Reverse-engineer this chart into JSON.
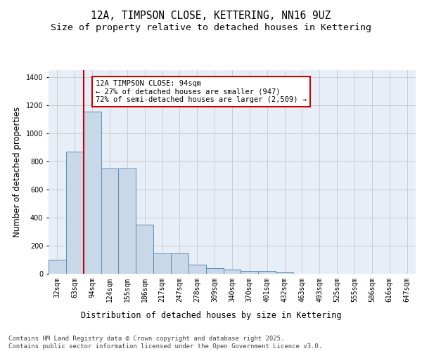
{
  "title_line1": "12A, TIMPSON CLOSE, KETTERING, NN16 9UZ",
  "title_line2": "Size of property relative to detached houses in Kettering",
  "xlabel": "Distribution of detached houses by size in Kettering",
  "ylabel": "Number of detached properties",
  "categories": [
    "32sqm",
    "63sqm",
    "94sqm",
    "124sqm",
    "155sqm",
    "186sqm",
    "217sqm",
    "247sqm",
    "278sqm",
    "309sqm",
    "340sqm",
    "370sqm",
    "401sqm",
    "432sqm",
    "463sqm",
    "493sqm",
    "525sqm",
    "555sqm",
    "586sqm",
    "616sqm",
    "647sqm"
  ],
  "values": [
    100,
    870,
    1155,
    750,
    750,
    350,
    145,
    145,
    65,
    40,
    30,
    20,
    18,
    8,
    0,
    0,
    0,
    0,
    0,
    0,
    0
  ],
  "bar_color": "#c8d8e8",
  "bar_edge_color": "#5b8db8",
  "grid_color": "#cccccc",
  "bg_color": "#e8eef8",
  "vline_color": "#cc0000",
  "annotation_text": "12A TIMPSON CLOSE: 94sqm\n← 27% of detached houses are smaller (947)\n72% of semi-detached houses are larger (2,509) →",
  "annotation_box_color": "#cc0000",
  "ylim": [
    0,
    1450
  ],
  "yticks": [
    0,
    200,
    400,
    600,
    800,
    1000,
    1200,
    1400
  ],
  "footer_line1": "Contains HM Land Registry data © Crown copyright and database right 2025.",
  "footer_line2": "Contains public sector information licensed under the Open Government Licence v3.0.",
  "title_fontsize": 10.5,
  "subtitle_fontsize": 9.5,
  "axis_label_fontsize": 8.5,
  "tick_fontsize": 7,
  "annotation_fontsize": 7.5,
  "footer_fontsize": 6.5
}
